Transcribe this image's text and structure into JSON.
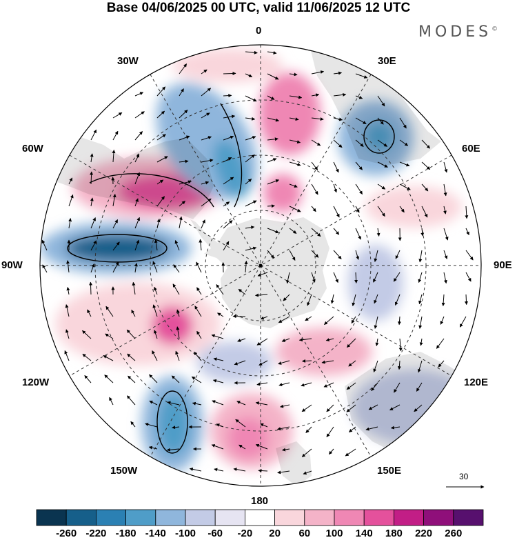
{
  "header": {
    "title": "Base 04/06/2025 00 UTC, valid 11/06/2025 12 UTC",
    "brand": "MODES",
    "brand_mark": "©"
  },
  "map": {
    "projection": "south-polar-stereographic",
    "grid": "dashed",
    "longitude_labels": {
      "top": "0",
      "top_right": "30E",
      "right_upper": "60E",
      "right": "90E",
      "right_lower": "120E",
      "bottom_right": "150E",
      "bottom": "180",
      "bottom_left": "150W",
      "left_lower": "120W",
      "left": "90W",
      "left_upper": "60W",
      "top_left": "30W"
    },
    "reference_vector": "30",
    "land_color": "#e6e6e6"
  },
  "colorbar": {
    "ticks": [
      "-260",
      "-220",
      "-180",
      "-140",
      "-100",
      "-60",
      "-20",
      "20",
      "60",
      "100",
      "140",
      "180",
      "220",
      "260"
    ],
    "colors": [
      "#0a3450",
      "#165f8a",
      "#2b80b3",
      "#4f9dc8",
      "#8fb6dc",
      "#c3cbe6",
      "#e6e4f2",
      "#ffffff",
      "#f9d6dc",
      "#f4b3c8",
      "#ef87b4",
      "#e4519c",
      "#c21e86",
      "#8f0f7a",
      "#57106e"
    ]
  }
}
